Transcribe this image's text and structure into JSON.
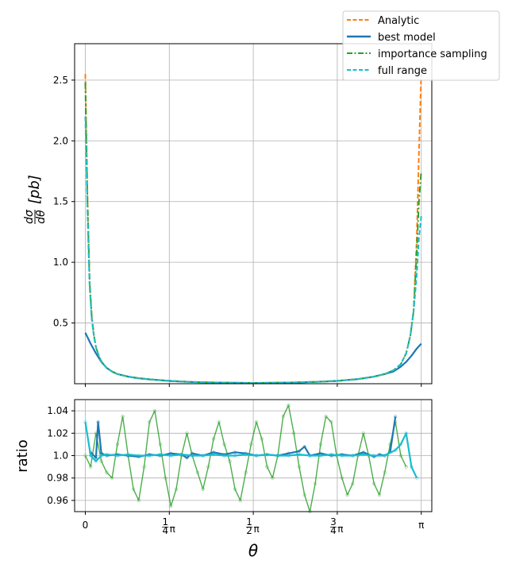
{
  "chart_data": [
    {
      "type": "line",
      "ylabel": "dσ/dθ [pb]",
      "ylim": [
        0.0,
        2.8
      ],
      "xlim": [
        -0.1,
        3.24
      ],
      "grid": true,
      "legend_position": "top-right",
      "x_ticks": [
        {
          "value": 0,
          "label": "0"
        },
        {
          "value": 0.7854,
          "label": "¼π"
        },
        {
          "value": 1.5708,
          "label": "½π"
        },
        {
          "value": 2.3562,
          "label": "¾π"
        },
        {
          "value": 3.1416,
          "label": "π"
        }
      ],
      "y_ticks": [
        {
          "value": 0.5,
          "label": "0.5"
        },
        {
          "value": 1.0,
          "label": "1.0"
        },
        {
          "value": 1.5,
          "label": "1.5"
        },
        {
          "value": 2.0,
          "label": "2.0"
        },
        {
          "value": 2.5,
          "label": "2.5"
        }
      ],
      "series": [
        {
          "name": "Analytic",
          "color": "#ff7f0e",
          "style": "dashed",
          "x": [
            0.0,
            0.02,
            0.04,
            0.06,
            0.08,
            0.1,
            0.13,
            0.16,
            0.2,
            0.25,
            0.3,
            0.4,
            0.5,
            0.6,
            0.8,
            1.0,
            1.2,
            1.4,
            1.5708,
            1.75,
            1.95,
            2.15,
            2.35,
            2.55,
            2.7,
            2.8,
            2.88,
            2.95,
            3.0,
            3.04,
            3.07,
            3.1,
            3.12,
            3.1416
          ],
          "y": [
            2.55,
            1.55,
            0.85,
            0.55,
            0.4,
            0.3,
            0.22,
            0.17,
            0.13,
            0.1,
            0.08,
            0.058,
            0.045,
            0.036,
            0.022,
            0.014,
            0.01,
            0.007,
            0.006,
            0.007,
            0.01,
            0.015,
            0.023,
            0.038,
            0.058,
            0.08,
            0.11,
            0.16,
            0.25,
            0.4,
            0.6,
            1.2,
            1.9,
            2.55
          ]
        },
        {
          "name": "best model",
          "color": "#1f77b4",
          "style": "solid",
          "x": [
            0.0,
            0.05,
            0.1,
            0.15,
            0.2,
            0.25,
            0.3,
            0.4,
            0.5,
            0.6,
            0.8,
            1.0,
            1.2,
            1.4,
            1.5708,
            1.75,
            1.95,
            2.15,
            2.35,
            2.55,
            2.7,
            2.8,
            2.88,
            2.95,
            3.0,
            3.05,
            3.1,
            3.1416
          ],
          "y": [
            0.42,
            0.33,
            0.25,
            0.18,
            0.13,
            0.1,
            0.08,
            0.058,
            0.045,
            0.036,
            0.022,
            0.014,
            0.01,
            0.007,
            0.006,
            0.007,
            0.01,
            0.015,
            0.023,
            0.038,
            0.058,
            0.08,
            0.1,
            0.14,
            0.18,
            0.23,
            0.29,
            0.33
          ]
        },
        {
          "name": "importance sampling",
          "color": "#2ca02c",
          "style": "dashdot",
          "x": [
            0.0,
            0.02,
            0.04,
            0.06,
            0.08,
            0.1,
            0.13,
            0.16,
            0.2,
            0.25,
            0.3,
            0.4,
            0.5,
            0.6,
            0.8,
            1.0,
            1.2,
            1.4,
            1.5708,
            1.75,
            1.95,
            2.15,
            2.35,
            2.55,
            2.7,
            2.8,
            2.88,
            2.95,
            3.0,
            3.04,
            3.07,
            3.1,
            3.12,
            3.1416
          ],
          "y": [
            2.48,
            1.5,
            0.84,
            0.55,
            0.4,
            0.3,
            0.22,
            0.17,
            0.13,
            0.1,
            0.08,
            0.058,
            0.045,
            0.036,
            0.022,
            0.014,
            0.01,
            0.007,
            0.006,
            0.007,
            0.01,
            0.015,
            0.023,
            0.038,
            0.058,
            0.08,
            0.11,
            0.16,
            0.25,
            0.4,
            0.6,
            1.1,
            1.5,
            1.75
          ]
        },
        {
          "name": "full range",
          "color": "#17becf",
          "style": "dashed",
          "x": [
            0.0,
            0.02,
            0.04,
            0.06,
            0.08,
            0.1,
            0.13,
            0.16,
            0.2,
            0.25,
            0.3,
            0.4,
            0.5,
            0.6,
            0.8,
            1.0,
            1.2,
            1.4,
            1.5708,
            1.75,
            1.95,
            2.15,
            2.35,
            2.55,
            2.7,
            2.8,
            2.88,
            2.95,
            3.0,
            3.04,
            3.07,
            3.1,
            3.12,
            3.1416
          ],
          "y": [
            2.2,
            1.4,
            0.8,
            0.53,
            0.39,
            0.3,
            0.22,
            0.17,
            0.13,
            0.1,
            0.08,
            0.058,
            0.045,
            0.036,
            0.022,
            0.014,
            0.01,
            0.007,
            0.006,
            0.007,
            0.01,
            0.015,
            0.023,
            0.038,
            0.058,
            0.08,
            0.11,
            0.16,
            0.25,
            0.4,
            0.6,
            0.9,
            1.2,
            1.38
          ]
        }
      ]
    },
    {
      "type": "line",
      "xlabel": "θ",
      "ylabel": "ratio",
      "ylim": [
        0.95,
        1.05
      ],
      "xlim": [
        -0.1,
        3.24
      ],
      "grid": true,
      "y_ticks": [
        {
          "value": 0.96,
          "label": "0.96"
        },
        {
          "value": 0.98,
          "label": "0.98"
        },
        {
          "value": 1.0,
          "label": "1.0"
        },
        {
          "value": 1.02,
          "label": "1.02"
        },
        {
          "value": 1.04,
          "label": "1.04"
        }
      ],
      "series": [
        {
          "name": "best model",
          "color": "#1f77b4",
          "x": [
            0.05,
            0.1,
            0.12,
            0.15,
            0.2,
            0.3,
            0.4,
            0.5,
            0.6,
            0.7,
            0.8,
            0.9,
            0.95,
            1.0,
            1.1,
            1.2,
            1.3,
            1.4,
            1.5,
            1.6,
            1.7,
            1.8,
            1.9,
            2.0,
            2.05,
            2.1,
            2.2,
            2.3,
            2.4,
            2.5,
            2.6,
            2.7,
            2.75,
            2.8,
            2.85,
            2.9
          ],
          "y": [
            1.003,
            0.998,
            1.03,
            1.002,
            1.0,
            1.001,
            1.0,
            0.999,
            1.001,
            1.0,
            1.002,
            1.001,
            0.998,
            1.002,
            1.0,
            1.003,
            1.001,
            1.003,
            1.002,
            1.0,
            1.001,
            1.0,
            1.002,
            1.004,
            1.008,
            1.0,
            1.002,
            1.0,
            1.001,
            1.0,
            1.003,
            0.999,
            1.001,
            1.0,
            1.003,
            1.035
          ]
        },
        {
          "name": "importance sampling",
          "color": "#2ca02c",
          "x": [
            0.0,
            0.05,
            0.1,
            0.15,
            0.2,
            0.25,
            0.3,
            0.35,
            0.4,
            0.45,
            0.5,
            0.55,
            0.6,
            0.65,
            0.7,
            0.75,
            0.8,
            0.85,
            0.9,
            0.95,
            1.0,
            1.05,
            1.1,
            1.15,
            1.2,
            1.25,
            1.3,
            1.35,
            1.4,
            1.45,
            1.5,
            1.55,
            1.6,
            1.65,
            1.7,
            1.75,
            1.8,
            1.85,
            1.9,
            1.95,
            2.0,
            2.05,
            2.1,
            2.15,
            2.2,
            2.25,
            2.3,
            2.35,
            2.4,
            2.45,
            2.5,
            2.55,
            2.6,
            2.65,
            2.7,
            2.75,
            2.8,
            2.85,
            2.9,
            2.95,
            3.0
          ],
          "y": [
            1.0,
            0.99,
            1.02,
            0.995,
            0.985,
            0.98,
            1.01,
            1.035,
            1.0,
            0.97,
            0.96,
            0.99,
            1.03,
            1.04,
            1.01,
            0.98,
            0.955,
            0.97,
            1.0,
            1.02,
            1.0,
            0.985,
            0.97,
            0.99,
            1.015,
            1.03,
            1.01,
            0.995,
            0.97,
            0.96,
            0.985,
            1.01,
            1.03,
            1.015,
            0.99,
            0.98,
            1.0,
            1.035,
            1.045,
            1.02,
            0.99,
            0.965,
            0.95,
            0.975,
            1.01,
            1.035,
            1.03,
            1.0,
            0.98,
            0.965,
            0.975,
            1.0,
            1.02,
            1.0,
            0.975,
            0.965,
            0.985,
            1.01,
            1.03,
            1.0,
            0.99
          ]
        },
        {
          "name": "full range",
          "color": "#17becf",
          "x": [
            0.0,
            0.05,
            0.1,
            0.15,
            0.2,
            0.3,
            0.4,
            0.5,
            0.6,
            0.7,
            0.8,
            0.9,
            1.0,
            1.1,
            1.2,
            1.3,
            1.4,
            1.5,
            1.6,
            1.7,
            1.8,
            1.9,
            2.0,
            2.1,
            2.2,
            2.3,
            2.4,
            2.5,
            2.6,
            2.7,
            2.8,
            2.9,
            2.95,
            3.0,
            3.05,
            3.1
          ],
          "y": [
            1.03,
            1.0,
            0.995,
            1.0,
            1.001,
            1.0,
            1.001,
            1.0,
            1.0,
            1.001,
            1.0,
            1.001,
            1.0,
            1.0,
            1.001,
            1.0,
            1.0,
            1.001,
            1.0,
            1.001,
            1.0,
            1.0,
            1.001,
            1.0,
            1.0,
            1.001,
            1.0,
            1.0,
            1.001,
            1.0,
            1.0,
            1.005,
            1.01,
            1.02,
            0.99,
            0.98
          ]
        }
      ]
    }
  ]
}
